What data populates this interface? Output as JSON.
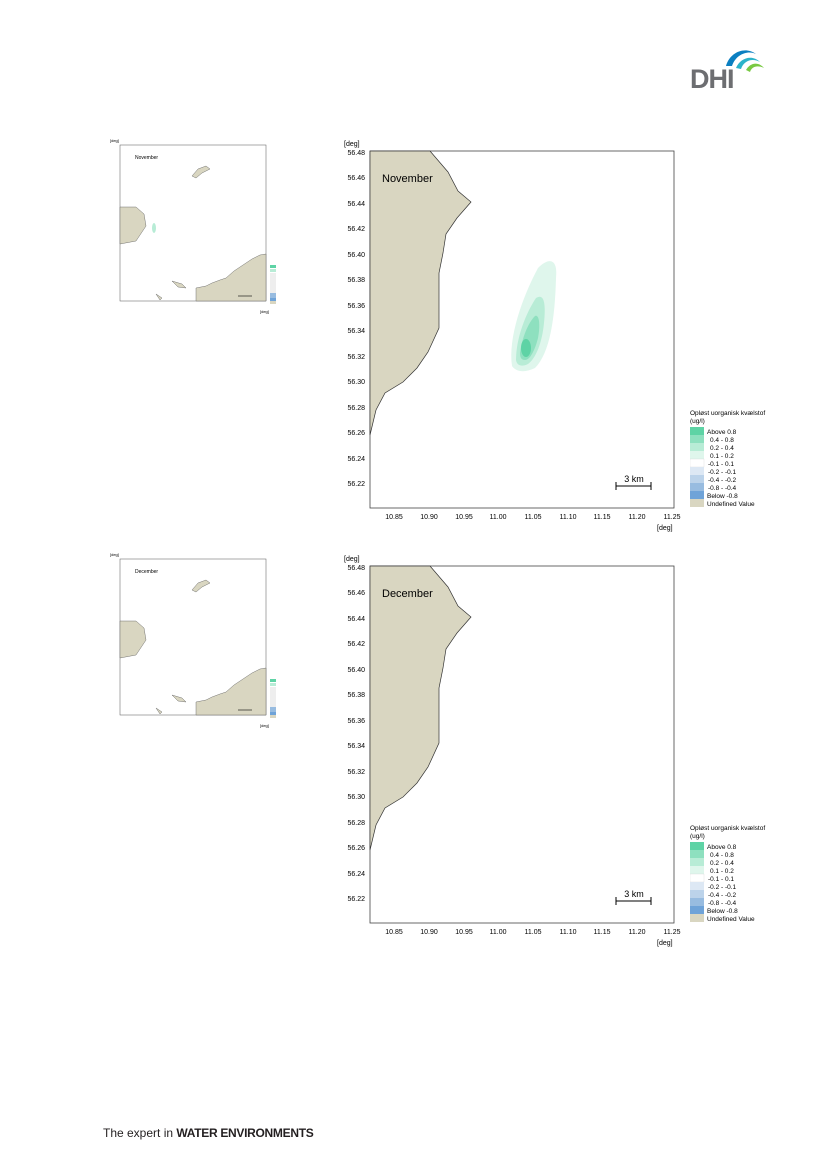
{
  "brand": {
    "logo_text": "DHI",
    "tagline_prefix": "The expert in ",
    "tagline_bold": "WATER ENVIRONMENTS"
  },
  "axis": {
    "unit": "[deg]",
    "y_ticks": [
      "56.48",
      "56.46",
      "56.44",
      "56.42",
      "56.40",
      "56.38",
      "56.36",
      "56.34",
      "56.32",
      "56.30",
      "56.28",
      "56.26",
      "56.24",
      "56.22"
    ],
    "x_ticks": [
      "10.85",
      "10.90",
      "10.95",
      "11.00",
      "11.05",
      "11.10",
      "11.15",
      "11.20",
      "11.25"
    ]
  },
  "legend": {
    "title_line1": "Opløst uorganisk kvælstof",
    "title_line2": "(ug/l)",
    "entries": [
      {
        "label": "Above  0.8",
        "color": "#5ed3a5"
      },
      {
        "label": "0.4 -  0.8",
        "color": "#8ee0bf"
      },
      {
        "label": "0.2 -  0.4",
        "color": "#b8ecd6"
      },
      {
        "label": "0.1 -  0.2",
        "color": "#dff6ec"
      },
      {
        "label": "-0.1 -  0.1",
        "color": "#ffffff"
      },
      {
        "label": "-0.2 - -0.1",
        "color": "#dde8f4"
      },
      {
        "label": "-0.4 - -0.2",
        "color": "#bcd3ea"
      },
      {
        "label": "-0.8 - -0.4",
        "color": "#98bce0"
      },
      {
        "label": "Below -0.8",
        "color": "#6fa3d8"
      },
      {
        "label": "Undefined Value",
        "color": "#d9d6c1"
      }
    ]
  },
  "scale_bar": "3 km",
  "land_color": "#d9d6c1",
  "maps": [
    {
      "month": "November"
    },
    {
      "month": "December"
    }
  ]
}
